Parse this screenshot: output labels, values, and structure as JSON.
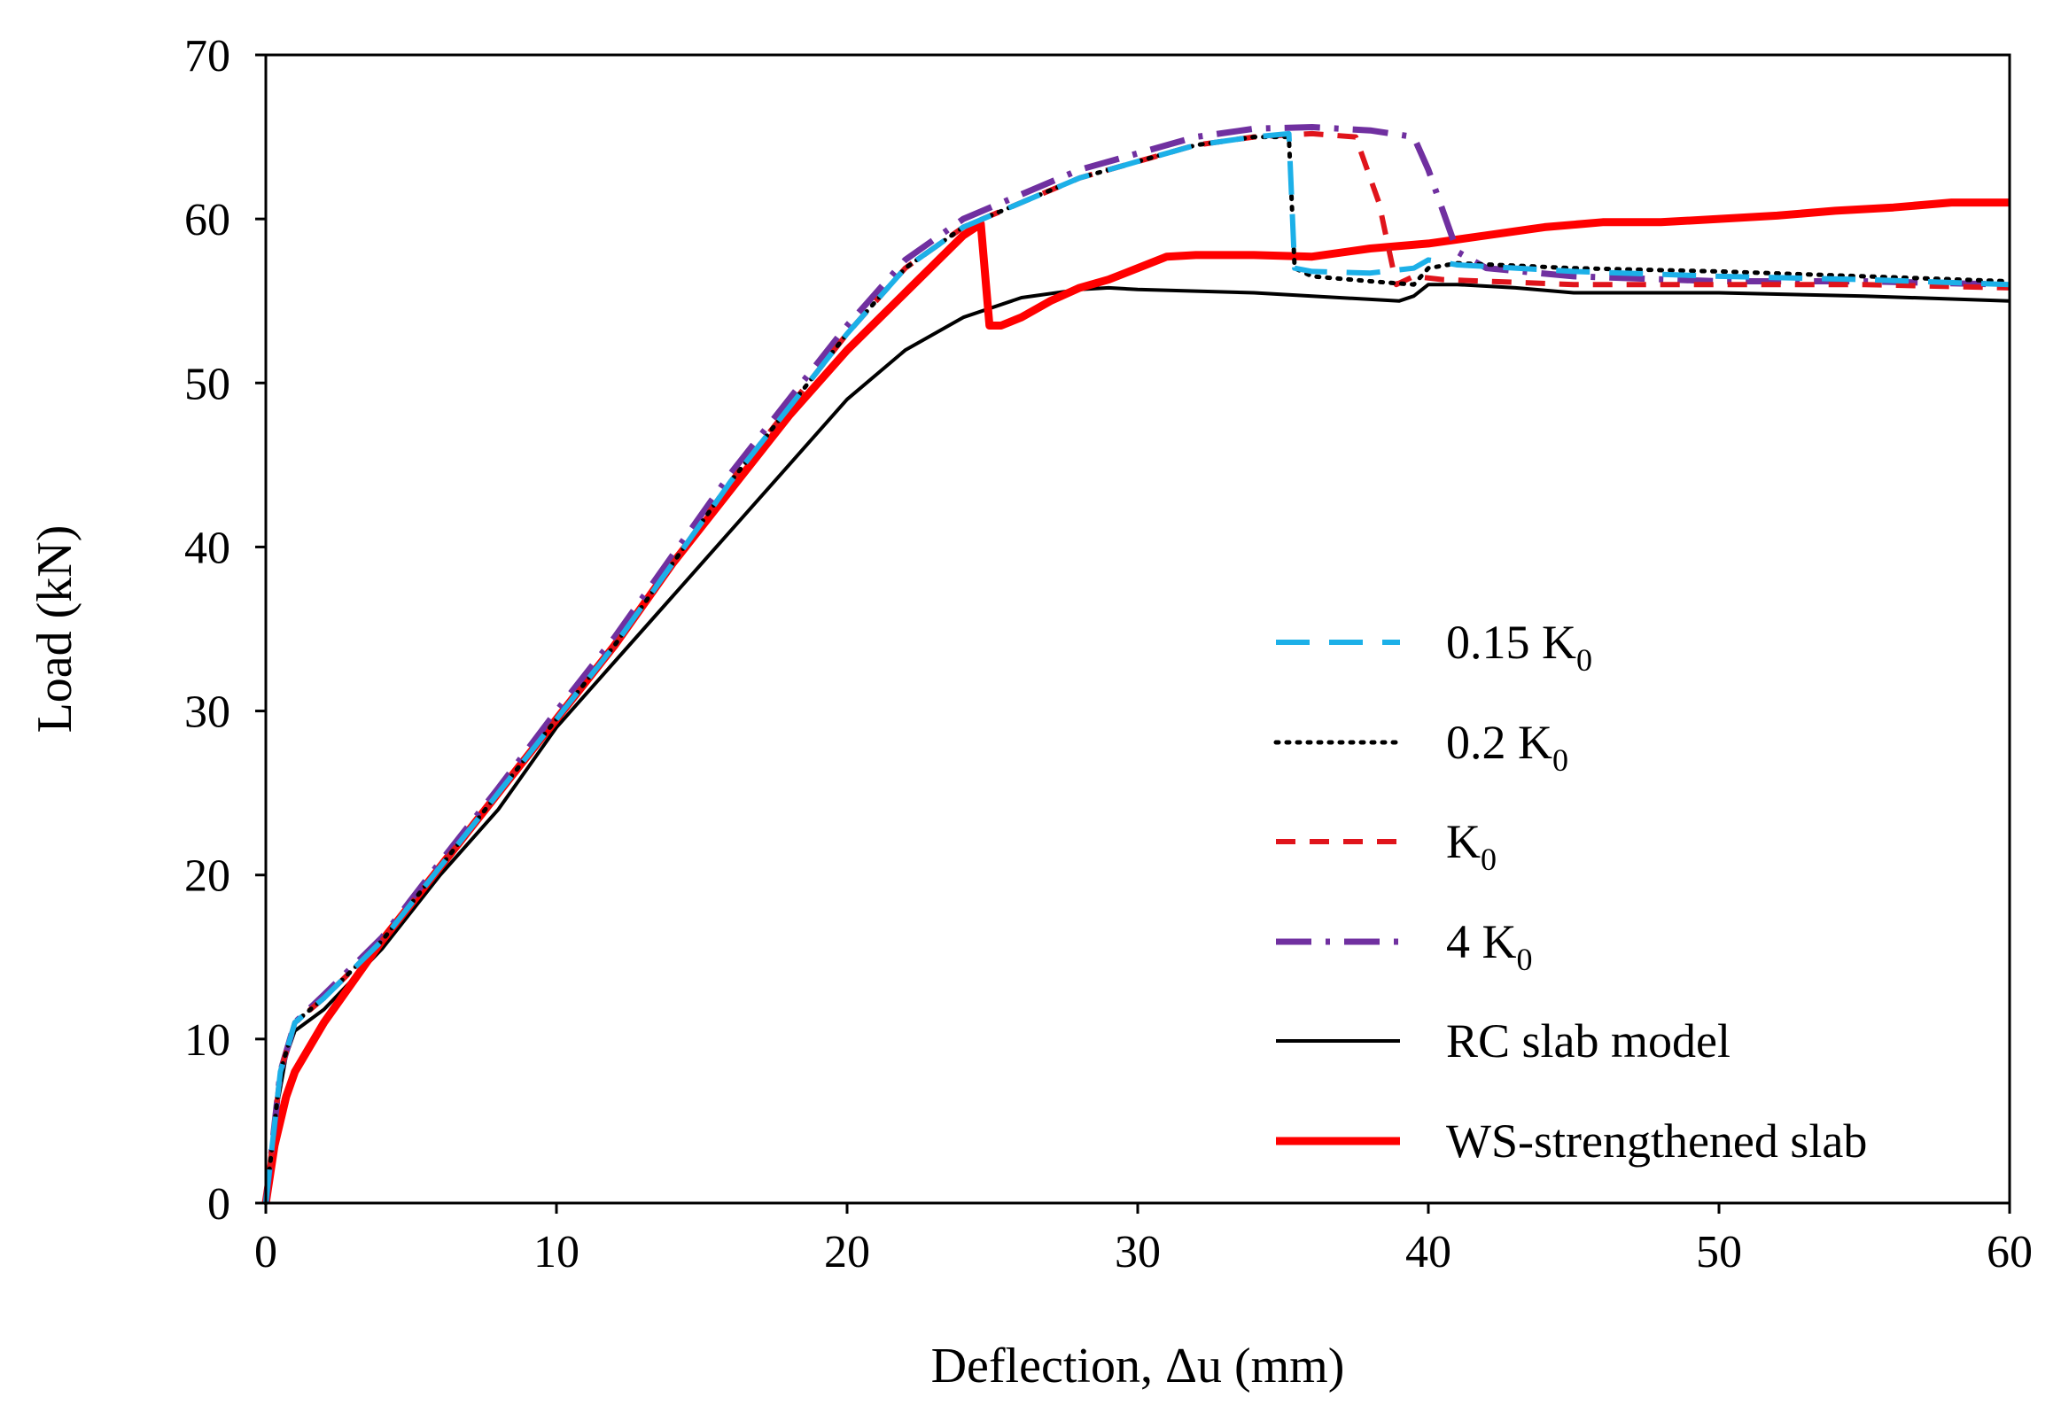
{
  "chart_data": {
    "type": "line",
    "title": "",
    "xlabel": "Deflection, Δu (mm)",
    "ylabel": "Load (kN)",
    "xlim": [
      0,
      60
    ],
    "ylim": [
      0,
      70
    ],
    "xticks": [
      "0",
      "10",
      "20",
      "30",
      "40",
      "50",
      "60"
    ],
    "yticks": [
      "0",
      "10",
      "20",
      "30",
      "40",
      "50",
      "60",
      "70"
    ],
    "grid": false,
    "legend_position": "lower-right",
    "series": [
      {
        "name": "0.15 K",
        "name_sub": "0",
        "color": "#1CB0E8",
        "dash": "long-dash",
        "x": [
          0,
          0.5,
          1,
          2,
          4,
          6,
          8,
          10,
          12,
          14,
          16,
          18,
          20,
          22,
          24,
          26,
          28,
          30,
          32,
          34,
          35.2,
          35.4,
          36,
          38,
          39.5,
          40,
          41,
          45,
          50,
          55,
          60
        ],
        "y": [
          0,
          8,
          11,
          12.5,
          16,
          20.5,
          25,
          29.5,
          34,
          39,
          44,
          48.5,
          53,
          57,
          59.5,
          61,
          62.5,
          63.5,
          64.5,
          65,
          65.2,
          57,
          56.8,
          56.7,
          57,
          57.5,
          57.2,
          56.8,
          56.5,
          56.3,
          56
        ]
      },
      {
        "name": "0.2 K",
        "name_sub": "0",
        "color": "#000000",
        "dash": "dotted",
        "x": [
          0,
          0.5,
          1,
          2,
          4,
          6,
          8,
          10,
          12,
          14,
          16,
          18,
          20,
          22,
          24,
          26,
          28,
          30,
          32,
          34,
          35.2,
          35.4,
          36,
          38,
          39.5,
          40,
          41,
          45,
          50,
          55,
          60
        ],
        "y": [
          0,
          8,
          11,
          12.5,
          16,
          20.5,
          25,
          29.5,
          34,
          39,
          44,
          48.5,
          53,
          57,
          59.5,
          61,
          62.5,
          63.5,
          64.5,
          65,
          65,
          57,
          56.5,
          56.2,
          56,
          57,
          57.3,
          57,
          56.8,
          56.5,
          56.2
        ]
      },
      {
        "name": "K",
        "name_sub": "0",
        "color": "#E0141B",
        "dash": "dashed",
        "x": [
          0,
          0.5,
          1,
          2,
          4,
          6,
          8,
          10,
          12,
          14,
          16,
          18,
          20,
          22,
          24,
          26,
          28,
          30,
          32,
          34,
          36,
          37.5,
          38.3,
          38.9,
          39.5,
          40.5,
          42,
          45,
          50,
          55,
          60
        ],
        "y": [
          0,
          8,
          11,
          12.5,
          16,
          20.5,
          25,
          29.5,
          34,
          39,
          44,
          48.5,
          53,
          57,
          59.5,
          61,
          62.5,
          63.5,
          64.5,
          65,
          65.2,
          65,
          61,
          56,
          56.5,
          56.3,
          56.2,
          56,
          56,
          56,
          55.8
        ]
      },
      {
        "name": "4 K",
        "name_sub": "0",
        "color": "#7030A0",
        "dash": "dash-dot",
        "x": [
          0,
          0.5,
          1,
          2,
          4,
          6,
          8,
          10,
          12,
          14,
          16,
          18,
          20,
          22,
          24,
          26,
          28,
          30,
          32,
          34,
          36,
          38,
          39.5,
          40,
          40.5,
          41,
          42,
          45,
          50,
          55,
          60
        ],
        "y": [
          0,
          8,
          11,
          12.7,
          16.2,
          20.8,
          25.3,
          30,
          34.5,
          39.5,
          44.5,
          49,
          53.5,
          57.5,
          60,
          61.5,
          63,
          64,
          65,
          65.5,
          65.6,
          65.4,
          65,
          63,
          60.5,
          58,
          57,
          56.5,
          56.2,
          56.2,
          56
        ]
      },
      {
        "name": "RC slab model",
        "color": "#000000",
        "dash": "solid",
        "x": [
          0,
          0.3,
          0.7,
          1,
          2,
          4,
          6,
          8,
          10,
          10.5,
          12,
          14,
          16,
          18,
          20,
          22,
          24,
          26,
          28,
          29,
          30,
          32,
          34,
          36,
          38,
          39,
          39.5,
          40,
          41,
          43,
          45,
          47,
          50,
          55,
          60
        ],
        "y": [
          0,
          5,
          9,
          10.5,
          11.8,
          15.5,
          20,
          24,
          29,
          30,
          33,
          37,
          41,
          45,
          49,
          52,
          54,
          55.2,
          55.7,
          55.8,
          55.7,
          55.6,
          55.5,
          55.3,
          55.1,
          55,
          55.3,
          56,
          56,
          55.8,
          55.5,
          55.5,
          55.5,
          55.3,
          55
        ]
      },
      {
        "name": "WS-strengthened slab",
        "color": "#FF0000",
        "dash": "solid-thick",
        "x": [
          0,
          0.3,
          0.7,
          1,
          2,
          4,
          6,
          8,
          10,
          12,
          14,
          16,
          18,
          20,
          22,
          24,
          24.6,
          24.9,
          25.3,
          26,
          27,
          28,
          29,
          30,
          31,
          32,
          34,
          36,
          38,
          40,
          42,
          44,
          46,
          48,
          50,
          52,
          54,
          56,
          58,
          60
        ],
        "y": [
          0,
          3.5,
          6.5,
          8,
          11,
          16,
          20.5,
          25,
          29.5,
          34,
          39,
          43.5,
          48,
          52,
          55.5,
          59,
          59.7,
          53.5,
          53.5,
          54,
          55,
          55.8,
          56.3,
          57,
          57.7,
          57.8,
          57.8,
          57.7,
          58.2,
          58.5,
          59,
          59.5,
          59.8,
          59.8,
          60,
          60.2,
          60.5,
          60.7,
          61,
          61
        ]
      }
    ]
  }
}
